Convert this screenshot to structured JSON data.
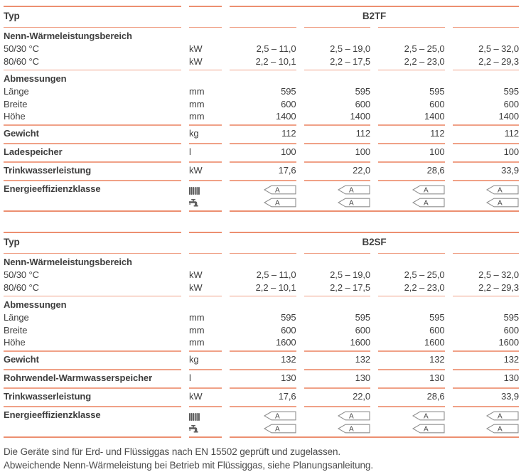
{
  "colors": {
    "rule_light": "#F0A187",
    "rule_strong": "#EC8F70",
    "text": "#3E3E3E",
    "tag_border": "#8F8F8F",
    "icon": "#5A5A5A"
  },
  "tables": [
    {
      "model_name": "B2TF",
      "rows": [
        {
          "type": "model",
          "label": "Typ",
          "model": "B2TF",
          "rule": "cols"
        },
        {
          "type": "section",
          "label": "Nenn-Wärmeleistungsbereich"
        },
        {
          "type": "data",
          "label": "50/30 °C",
          "unit": "kW",
          "values": [
            "2,5 – 11,0",
            "2,5 – 19,0",
            "2,5 – 25,0",
            "2,5 – 32,0"
          ]
        },
        {
          "type": "data",
          "label": "80/60 °C",
          "unit": "kW",
          "values": [
            "2,2 – 10,1",
            "2,2 – 17,5",
            "2,2 – 23,0",
            "2,2 – 29,3"
          ],
          "rule": "cols"
        },
        {
          "type": "section",
          "label": "Abmessungen"
        },
        {
          "type": "data",
          "label": "Länge",
          "unit": "mm",
          "values": [
            "595",
            "595",
            "595",
            "595"
          ]
        },
        {
          "type": "data",
          "label": "Breite",
          "unit": "mm",
          "values": [
            "600",
            "600",
            "600",
            "600"
          ]
        },
        {
          "type": "data",
          "label": "Höhe",
          "unit": "mm",
          "values": [
            "1400",
            "1400",
            "1400",
            "1400"
          ],
          "rule": "cols"
        },
        {
          "type": "data",
          "bold": true,
          "label": "Gewicht",
          "unit": "kg",
          "values": [
            "112",
            "112",
            "112",
            "112"
          ],
          "rule": "cols"
        },
        {
          "type": "data",
          "bold": true,
          "label": "Ladespeicher",
          "unit": "l",
          "values": [
            "100",
            "100",
            "100",
            "100"
          ],
          "rule": "cols"
        },
        {
          "type": "data",
          "bold": true,
          "label": "Trinkwasserleistung",
          "unit": "kW",
          "values": [
            "17,6",
            "22,0",
            "28,6",
            "33,9"
          ],
          "rule": "cols"
        },
        {
          "type": "energy",
          "label": "Energieeffizienzklasse",
          "icon": "radiator-icon",
          "ratings": [
            "A",
            "A",
            "A",
            "A"
          ]
        },
        {
          "type": "energy",
          "label": "",
          "icon": "tap-icon",
          "ratings": [
            "A",
            "A",
            "A",
            "A"
          ],
          "rule": "end"
        }
      ]
    },
    {
      "model_name": "B2SF",
      "rows": [
        {
          "type": "model",
          "label": "Typ",
          "model": "B2SF",
          "rule": "cols"
        },
        {
          "type": "section",
          "label": "Nenn-Wärmeleistungsbereich"
        },
        {
          "type": "data",
          "label": "50/30 °C",
          "unit": "kW",
          "values": [
            "2,5 – 11,0",
            "2,5 – 19,0",
            "2,5 – 25,0",
            "2,5 – 32,0"
          ]
        },
        {
          "type": "data",
          "label": "80/60 °C",
          "unit": "kW",
          "values": [
            "2,2 – 10,1",
            "2,2 – 17,5",
            "2,2 – 23,0",
            "2,2 – 29,3"
          ],
          "rule": "cols"
        },
        {
          "type": "section",
          "label": "Abmessungen"
        },
        {
          "type": "data",
          "label": "Länge",
          "unit": "mm",
          "values": [
            "595",
            "595",
            "595",
            "595"
          ]
        },
        {
          "type": "data",
          "label": "Breite",
          "unit": "mm",
          "values": [
            "600",
            "600",
            "600",
            "600"
          ]
        },
        {
          "type": "data",
          "label": "Höhe",
          "unit": "mm",
          "values": [
            "1600",
            "1600",
            "1600",
            "1600"
          ],
          "rule": "cols"
        },
        {
          "type": "data",
          "bold": true,
          "label": "Gewicht",
          "unit": "kg",
          "values": [
            "132",
            "132",
            "132",
            "132"
          ],
          "rule": "cols"
        },
        {
          "type": "data",
          "bold": true,
          "label": "Rohrwendel-Warmwasserspeicher",
          "unit": "l",
          "values": [
            "130",
            "130",
            "130",
            "130"
          ],
          "rule": "cols"
        },
        {
          "type": "data",
          "bold": true,
          "label": "Trinkwasserleistung",
          "unit": "kW",
          "values": [
            "17,6",
            "22,0",
            "28,6",
            "33,9"
          ],
          "rule": "cols"
        },
        {
          "type": "energy",
          "label": "Energieeffizienzklasse",
          "icon": "radiator-icon",
          "ratings": [
            "A",
            "A",
            "A",
            "A"
          ]
        },
        {
          "type": "energy",
          "label": "",
          "icon": "tap-icon",
          "ratings": [
            "A",
            "A",
            "A",
            "A"
          ],
          "rule": "end"
        }
      ]
    }
  ],
  "footer": {
    "line1": "Die Geräte sind für Erd- und Flüssiggas nach EN 15502 geprüft und zugelassen.",
    "line2": "Abweichende Nenn-Wärmeleistung bei Betrieb mit Flüssiggas, siehe Planungsanleitung."
  }
}
